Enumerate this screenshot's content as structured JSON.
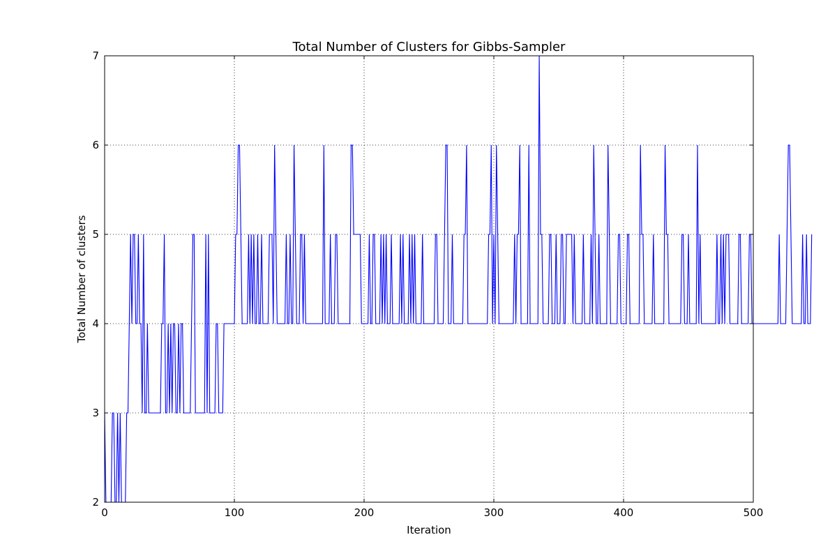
{
  "chart_data": {
    "type": "line",
    "title": "Total Number of Clusters for Gibbs-Sampler",
    "xlabel": "Iteration",
    "ylabel": "Total Number of clusters",
    "xlim": [
      0,
      500
    ],
    "ylim": [
      2,
      7
    ],
    "x_ticks": [
      "0",
      "100",
      "200",
      "300",
      "400",
      "500"
    ],
    "y_ticks": [
      "2",
      "3",
      "4",
      "5",
      "6",
      "7"
    ],
    "grid": true,
    "colors": {
      "line": "#0000ff",
      "grid": "#000000",
      "frame": "#000000"
    },
    "series": [
      {
        "x_start": 0,
        "x_step": 1,
        "values": [
          3,
          2,
          2,
          2,
          2,
          2,
          3,
          3,
          2,
          2,
          3,
          2,
          3,
          2,
          2,
          2,
          2,
          3,
          3,
          4,
          5,
          4,
          5,
          5,
          4,
          4,
          5,
          4,
          4,
          3,
          5,
          3,
          3,
          4,
          3,
          3,
          3,
          3,
          3,
          3,
          3,
          3,
          3,
          3,
          4,
          4,
          5,
          3,
          3,
          4,
          3,
          4,
          3,
          4,
          4,
          3,
          3,
          4,
          3,
          4,
          4,
          3,
          3,
          3,
          3,
          3,
          3,
          4,
          5,
          5,
          3,
          3,
          3,
          3,
          3,
          3,
          3,
          3,
          5,
          3,
          5,
          3,
          3,
          3,
          3,
          3,
          4,
          4,
          3,
          3,
          3,
          3,
          4,
          4,
          4,
          4,
          4,
          4,
          4,
          4,
          4,
          5,
          5,
          6,
          6,
          5,
          4,
          4,
          4,
          4,
          4,
          5,
          4,
          5,
          4,
          5,
          4,
          4,
          5,
          4,
          4,
          5,
          4,
          4,
          4,
          4,
          4,
          5,
          5,
          5,
          4,
          6,
          5,
          4,
          4,
          4,
          4,
          4,
          4,
          4,
          5,
          4,
          4,
          5,
          4,
          4,
          6,
          5,
          4,
          4,
          4,
          5,
          5,
          4,
          5,
          4,
          4,
          4,
          4,
          4,
          4,
          4,
          4,
          4,
          4,
          4,
          4,
          4,
          4,
          6,
          4,
          4,
          4,
          4,
          5,
          4,
          4,
          4,
          5,
          5,
          4,
          4,
          4,
          4,
          4,
          4,
          4,
          4,
          4,
          4,
          6,
          6,
          5,
          5,
          5,
          5,
          5,
          5,
          4,
          4,
          4,
          4,
          4,
          4,
          5,
          4,
          4,
          5,
          5,
          4,
          4,
          4,
          4,
          5,
          4,
          5,
          4,
          5,
          4,
          4,
          4,
          5,
          4,
          4,
          4,
          4,
          4,
          4,
          5,
          4,
          5,
          4,
          4,
          4,
          4,
          5,
          4,
          5,
          4,
          5,
          4,
          4,
          4,
          4,
          4,
          5,
          4,
          4,
          4,
          4,
          4,
          4,
          4,
          4,
          4,
          5,
          5,
          4,
          4,
          4,
          4,
          4,
          5,
          6,
          6,
          4,
          4,
          4,
          5,
          4,
          4,
          4,
          4,
          4,
          4,
          4,
          4,
          5,
          5,
          6,
          4,
          4,
          4,
          4,
          4,
          4,
          4,
          4,
          4,
          4,
          4,
          4,
          4,
          4,
          4,
          4,
          5,
          5,
          6,
          4,
          5,
          4,
          6,
          5,
          4,
          4,
          4,
          4,
          4,
          4,
          4,
          4,
          4,
          4,
          4,
          4,
          5,
          4,
          5,
          5,
          6,
          4,
          4,
          4,
          4,
          4,
          4,
          6,
          4,
          4,
          4,
          4,
          4,
          4,
          4,
          7,
          5,
          5,
          4,
          4,
          4,
          4,
          4,
          5,
          5,
          4,
          4,
          4,
          5,
          4,
          4,
          4,
          5,
          5,
          4,
          4,
          5,
          5,
          5,
          5,
          5,
          4,
          5,
          4,
          4,
          4,
          4,
          4,
          4,
          5,
          4,
          4,
          4,
          4,
          4,
          5,
          4,
          6,
          5,
          4,
          4,
          5,
          4,
          4,
          4,
          4,
          4,
          4,
          6,
          5,
          4,
          4,
          4,
          4,
          4,
          4,
          5,
          5,
          4,
          4,
          4,
          4,
          4,
          5,
          5,
          4,
          4,
          4,
          4,
          4,
          4,
          4,
          4,
          6,
          5,
          5,
          4,
          4,
          4,
          4,
          4,
          4,
          4,
          5,
          4,
          4,
          4,
          4,
          4,
          4,
          4,
          4,
          6,
          5,
          5,
          4,
          4,
          4,
          4,
          4,
          4,
          4,
          4,
          4,
          4,
          5,
          5,
          4,
          4,
          4,
          5,
          4,
          4,
          4,
          4,
          4,
          4,
          6,
          4,
          5,
          4,
          4,
          4,
          4,
          4,
          4,
          4,
          4,
          4,
          4,
          4,
          4,
          5,
          4,
          4,
          5,
          4,
          5,
          4,
          5,
          5,
          5,
          4,
          4,
          4,
          4,
          4,
          4,
          4,
          5,
          5,
          4,
          4,
          4,
          4,
          4,
          4,
          5,
          5,
          4,
          4,
          4,
          4,
          4,
          4,
          4,
          4,
          4,
          4,
          4,
          4,
          4,
          4,
          4,
          4,
          4,
          4,
          4,
          4,
          4,
          5,
          4,
          4,
          4,
          4,
          4,
          5,
          6,
          6,
          5,
          4,
          4,
          4,
          4,
          4,
          4,
          4,
          4,
          5,
          4,
          4,
          5,
          4,
          4,
          4,
          5
        ]
      }
    ]
  }
}
